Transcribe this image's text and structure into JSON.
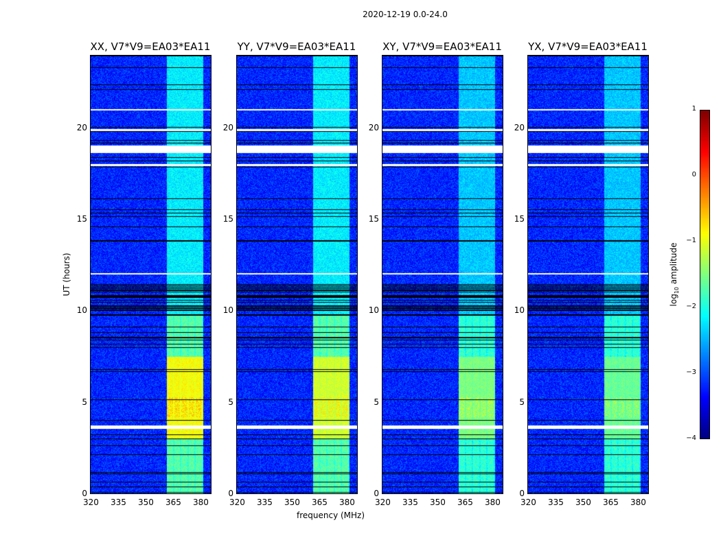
{
  "chart_data": {
    "type": "heatmap",
    "title": "2020-12-19 0.0-24.0",
    "xlabel": "frequency (MHz)",
    "ylabel": "UT (hours)",
    "xlim": [
      320,
      386.4
    ],
    "ylim": [
      0,
      24
    ],
    "xticks": [
      320,
      335,
      350,
      365,
      380
    ],
    "yticks": [
      0,
      5,
      10,
      15,
      20
    ],
    "panels": [
      {
        "title": "XX, V7*V9=EA03*EA11",
        "peak_log_amp": -0.5
      },
      {
        "title": "YY, V7*V9=EA03*EA11",
        "peak_log_amp": -0.7
      },
      {
        "title": "XY, V7*V9=EA03*EA11",
        "peak_log_amp": -0.9
      },
      {
        "title": "YX, V7*V9=EA03*EA11",
        "peak_log_amp": -1.0
      }
    ],
    "signal_band_mhz": [
      362,
      382
    ],
    "background_log_amp": -3.2,
    "colorbar": {
      "label_main": "log",
      "label_sub": "10",
      "label_tail": " amplitude",
      "colormap": "jet",
      "range": [
        -4,
        1
      ],
      "ticks": [
        1,
        0,
        -1,
        -2,
        -3,
        -4
      ],
      "tick_labels": [
        "1",
        "0",
        "−1",
        "−2",
        "−3",
        "−4"
      ]
    }
  }
}
